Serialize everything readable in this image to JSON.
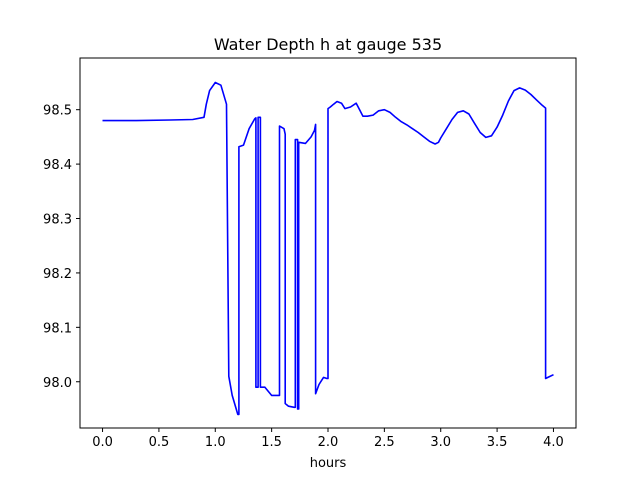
{
  "chart_data": {
    "type": "line",
    "title": "Water Depth h at gauge 535",
    "xlabel": "hours",
    "ylabel": "",
    "xlim": [
      -0.2,
      4.2
    ],
    "ylim": [
      97.915,
      98.595
    ],
    "xticks": [
      0.0,
      0.5,
      1.0,
      1.5,
      2.0,
      2.5,
      3.0,
      3.5,
      4.0
    ],
    "xtick_labels": [
      "0.0",
      "0.5",
      "1.0",
      "1.5",
      "2.0",
      "2.5",
      "3.0",
      "3.5",
      "4.0"
    ],
    "yticks": [
      98.0,
      98.1,
      98.2,
      98.3,
      98.4,
      98.5
    ],
    "ytick_labels": [
      "98.0",
      "98.1",
      "98.2",
      "98.3",
      "98.4",
      "98.5"
    ],
    "grid": false,
    "series": [
      {
        "color": "#0000ff",
        "x": [
          0.0,
          0.3,
          0.6,
          0.8,
          0.9,
          0.92,
          0.95,
          1.0,
          1.05,
          1.1,
          1.12,
          1.12,
          1.15,
          1.2,
          1.21,
          1.21,
          1.25,
          1.3,
          1.35,
          1.36,
          1.36,
          1.38,
          1.38,
          1.4,
          1.4,
          1.44,
          1.5,
          1.55,
          1.57,
          1.57,
          1.61,
          1.62,
          1.62,
          1.65,
          1.7,
          1.71,
          1.71,
          1.73,
          1.73,
          1.74,
          1.74,
          1.8,
          1.85,
          1.88,
          1.89,
          1.89,
          1.92,
          1.96,
          1.99,
          2.0,
          2.0,
          2.02,
          2.05,
          2.08,
          2.12,
          2.15,
          2.2,
          2.25,
          2.28,
          2.31,
          2.35,
          2.4,
          2.45,
          2.5,
          2.55,
          2.6,
          2.65,
          2.7,
          2.75,
          2.8,
          2.85,
          2.9,
          2.95,
          2.98,
          3.0,
          3.05,
          3.1,
          3.15,
          3.2,
          3.25,
          3.3,
          3.35,
          3.4,
          3.45,
          3.5,
          3.55,
          3.6,
          3.65,
          3.7,
          3.75,
          3.8,
          3.85,
          3.9,
          3.93,
          3.93,
          3.96,
          4.0
        ],
        "y": [
          98.48,
          98.48,
          98.481,
          98.482,
          98.486,
          98.51,
          98.535,
          98.55,
          98.545,
          98.51,
          98.01,
          98.01,
          97.975,
          97.94,
          97.94,
          98.432,
          98.435,
          98.465,
          98.483,
          98.485,
          97.99,
          97.99,
          98.486,
          98.486,
          97.99,
          97.99,
          97.975,
          97.975,
          97.975,
          98.47,
          98.465,
          98.455,
          97.96,
          97.955,
          97.953,
          97.953,
          98.445,
          98.445,
          97.95,
          97.95,
          98.44,
          98.438,
          98.45,
          98.462,
          98.473,
          97.978,
          97.995,
          98.008,
          98.006,
          98.006,
          98.502,
          98.505,
          98.51,
          98.515,
          98.512,
          98.502,
          98.505,
          98.512,
          98.5,
          98.488,
          98.488,
          98.49,
          98.498,
          98.5,
          98.495,
          98.486,
          98.478,
          98.472,
          98.465,
          98.458,
          98.45,
          98.442,
          98.437,
          98.44,
          98.448,
          98.465,
          98.482,
          98.495,
          98.498,
          98.492,
          98.475,
          98.458,
          98.449,
          98.452,
          98.468,
          98.49,
          98.516,
          98.535,
          98.54,
          98.536,
          98.528,
          98.518,
          98.508,
          98.503,
          98.006,
          98.009,
          98.013
        ]
      }
    ]
  }
}
